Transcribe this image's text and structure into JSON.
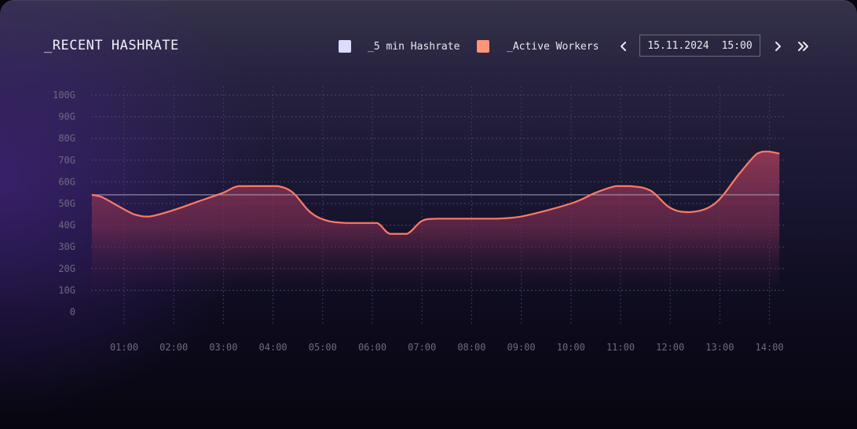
{
  "title": "_RECENT HASHRATE",
  "legend": [
    {
      "label": "_5 min Hashrate",
      "color": "#dcdcff"
    },
    {
      "label": "_Active Workers",
      "color": "#ff9478"
    }
  ],
  "date_picker": {
    "date": "15.11.2024",
    "time": "15:00"
  },
  "icons": {
    "prev": "chevron-left-icon",
    "next": "chevron-right-icon",
    "last": "chevron-double-right-icon"
  },
  "chart_data": {
    "type": "area",
    "title": "_RECENT HASHRATE",
    "xlabel": "",
    "ylabel": "",
    "ylim": [
      0,
      100
    ],
    "y_ticks": [
      "0",
      "10G",
      "20G",
      "30G",
      "40G",
      "50G",
      "60G",
      "70G",
      "80G",
      "90G",
      "100G"
    ],
    "x_ticks": [
      "01:00",
      "02:00",
      "03:00",
      "04:00",
      "05:00",
      "06:00",
      "07:00",
      "08:00",
      "09:00",
      "10:00",
      "11:00",
      "12:00",
      "13:00",
      "14:00"
    ],
    "xlim": [
      0.35,
      14.2
    ],
    "grid": true,
    "series": [
      {
        "name": "_5 min Hashrate",
        "color": "#dcdcff",
        "x": [
          0.35,
          14.2
        ],
        "values": [
          54,
          54
        ]
      },
      {
        "name": "_Active Workers",
        "color": "#ff7a66",
        "x": [
          0.35,
          0.55,
          1.2,
          1.5,
          2.0,
          2.5,
          3.0,
          3.3,
          3.8,
          4.1,
          4.4,
          4.75,
          5.1,
          5.5,
          5.8,
          6.1,
          6.35,
          6.7,
          7.0,
          7.3,
          8.0,
          8.5,
          9.0,
          10.0,
          10.5,
          10.9,
          11.2,
          11.6,
          12.0,
          12.4,
          12.9,
          13.4,
          13.75,
          13.95,
          14.2
        ],
        "values": [
          54,
          53,
          45,
          44,
          47,
          51,
          55,
          58,
          58,
          58,
          55,
          46,
          42,
          41,
          41,
          41,
          36,
          36,
          42,
          43,
          43,
          43,
          44,
          50,
          55,
          58,
          58,
          56,
          48,
          46,
          50,
          64,
          73,
          74,
          73
        ]
      }
    ]
  }
}
